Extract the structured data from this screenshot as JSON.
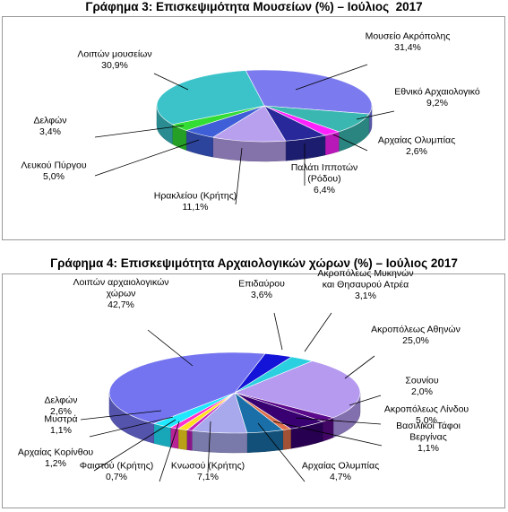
{
  "chart_data": [
    {
      "type": "pie",
      "title": "Γράφημα 3: Επισκεψιμότητα Μουσείων (%) – Ιούλιος  2017",
      "slices": [
        {
          "name": "Μουσείο Ακρόπολης",
          "value": 31.4,
          "value_label": "31,4%",
          "color": "#7b7bef"
        },
        {
          "name": "Εθνικό Αρχαιολογικό",
          "value": 9.2,
          "value_label": "9,2%",
          "color": "#3ab7b0"
        },
        {
          "name": "Αρχαίας Ολυμπίας",
          "value": 2.6,
          "value_label": "2,6%",
          "color": "#ff22ff"
        },
        {
          "name": "Παλάτι Ιπποτών\n(Ρόδου)",
          "value": 6.4,
          "value_label": "6,4%",
          "color": "#28289a"
        },
        {
          "name": "Ηρακλείου (Κρήτης)",
          "value": 11.1,
          "value_label": "11,1%",
          "color": "#b8a0ee"
        },
        {
          "name": "Λευκού Πύργου",
          "value": 5.0,
          "value_label": "5,0%",
          "color": "#3f5fd8"
        },
        {
          "name": "Δελφών",
          "value": 3.4,
          "value_label": "3,4%",
          "color": "#33dd33"
        },
        {
          "name": "Λοιπών μουσείων",
          "value": 30.9,
          "value_label": "30,9%",
          "color": "#3bc3c9"
        }
      ]
    },
    {
      "type": "pie",
      "title": "Γράφημα 4: Επισκεψιμότητα Αρχαιολογικών χώρων (%) – Ιούλιος 2017",
      "slices": [
        {
          "name": "Επιδαύρου",
          "value": 3.6,
          "value_label": "3,6%",
          "color": "#1414d8"
        },
        {
          "name": "Ακροπόλεως Μυκηνών\nκαι Θησαυρού Ατρέα",
          "value": 3.1,
          "value_label": "3,1%",
          "color": "#2bd0e0"
        },
        {
          "name": "Ακροπόλεως Αθηνών",
          "value": 25.0,
          "value_label": "25,0%",
          "color": "#b59af0"
        },
        {
          "name": "Σουνίου",
          "value": 2.0,
          "value_label": "2,0%",
          "color": "#5c0a8c"
        },
        {
          "name": "Ακροπόλεως Λίνδου",
          "value": 5.0,
          "value_label": "5,0%",
          "color": "#380070"
        },
        {
          "name": "Βασιλικοί Τάφοι\nΒεργίνας",
          "value": 1.1,
          "value_label": "1,1%",
          "color": "#e0704a"
        },
        {
          "name": "Αρχαίας Ολυμπίας",
          "value": 4.7,
          "value_label": "4,7%",
          "color": "#1a6fa8"
        },
        {
          "name": "Κνωσού (Κρήτης)",
          "value": 7.1,
          "value_label": "7,1%",
          "color": "#a8a8ec"
        },
        {
          "name": "Φαιστού (Κρήτης)",
          "value": 0.7,
          "value_label": "0,7%",
          "color": "#c020c0"
        },
        {
          "name": "Αρχαίας Κορίνθου",
          "value": 1.2,
          "value_label": "1,2%",
          "color": "#ffe020"
        },
        {
          "name": "Μυστρά",
          "value": 1.1,
          "value_label": "1,1%",
          "color": "#ff30d0"
        },
        {
          "name": "Δελφών",
          "value": 2.6,
          "value_label": "2,6%",
          "color": "#20e8ff"
        },
        {
          "name": "Λοιπών αρχαιολογικών\nχώρων",
          "value": 42.7,
          "value_label": "42,7%",
          "color": "#7474f0"
        }
      ]
    }
  ]
}
